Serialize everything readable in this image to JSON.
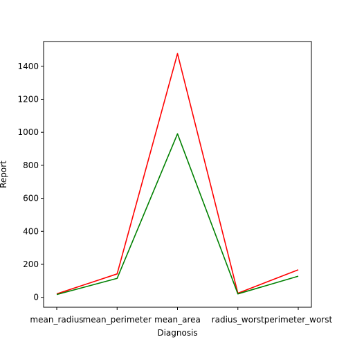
{
  "chart_data": {
    "type": "line",
    "title": "",
    "xlabel": "Diagnosis",
    "ylabel": "Report",
    "categories": [
      "mean_radius",
      "mean_perimeter",
      "mean_area",
      "radius_worst",
      "perimeter_worst"
    ],
    "ylim": [
      -60,
      1550
    ],
    "yticks": [
      0,
      200,
      400,
      600,
      800,
      1000,
      1200,
      1400
    ],
    "grid": false,
    "series": [
      {
        "color": "#ff0000",
        "values": [
          21,
          142,
          1477,
          25,
          167
        ]
      },
      {
        "color": "#008000",
        "values": [
          17,
          115,
          991,
          21,
          128
        ]
      }
    ]
  }
}
